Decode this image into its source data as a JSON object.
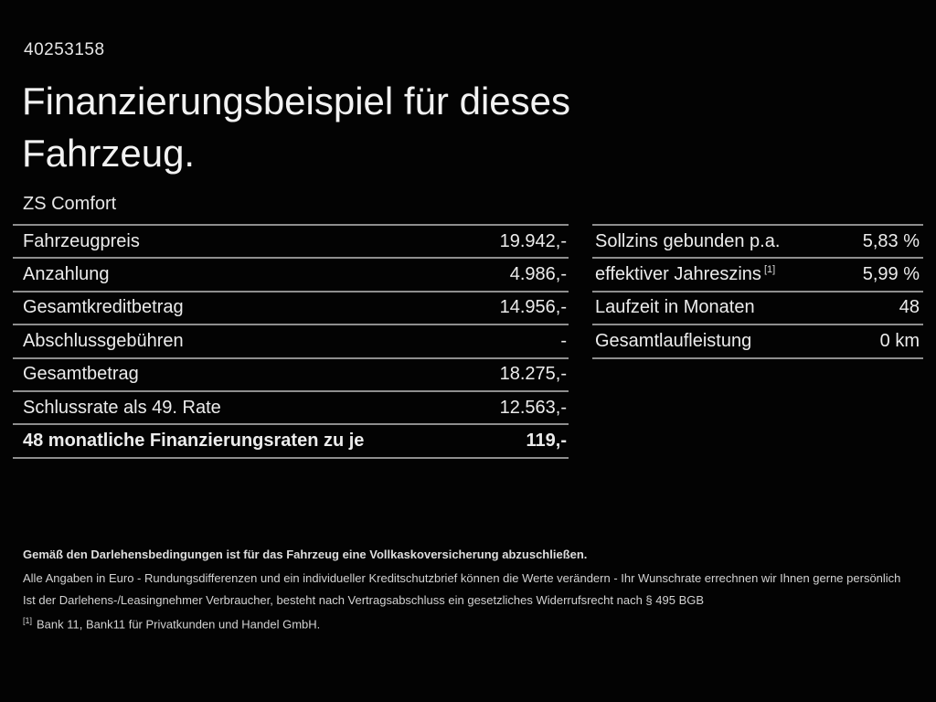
{
  "page": {
    "background": "#030303",
    "text_color": "#ececec",
    "divider_color": "#8e8e8e"
  },
  "header": {
    "reference_number": "40253158",
    "title_line1": "Finanzierungsbeispiel für dieses",
    "title_line2": "Fahrzeug.",
    "subtitle": "ZS Comfort"
  },
  "finance_table": {
    "rows": [
      {
        "label": "Fahrzeugpreis",
        "value": "19.942,-"
      },
      {
        "label": "Anzahlung",
        "value": "4.986,-"
      },
      {
        "label": "Gesamtkreditbetrag",
        "value": "14.956,-"
      },
      {
        "label": "Abschlussgebühren",
        "value": "-"
      },
      {
        "label": "Gesamtbetrag",
        "value": "18.275,-"
      },
      {
        "label": "Schlussrate als 49. Rate",
        "value": "12.563,-"
      },
      {
        "label": "48 monatliche Finanzierungsraten zu je",
        "value": "119,-"
      }
    ]
  },
  "terms_table": {
    "rows": [
      {
        "label": "Sollzins gebunden p.a.",
        "sup": "",
        "value": "5,83 %"
      },
      {
        "label": "effektiver Jahreszins",
        "sup": "[1]",
        "value": "5,99 %"
      },
      {
        "label": "Laufzeit in Monaten",
        "sup": "",
        "value": "48"
      },
      {
        "label": "Gesamtlaufleistung",
        "sup": "",
        "value": "0 km"
      }
    ]
  },
  "footer": {
    "insurance_note": "Gemäß den Darlehensbedingungen ist für das Fahrzeug eine Vollkaskoversicherung abzuschließen.",
    "disclaimer_line1": "Alle Angaben in Euro - Rundungsdifferenzen und ein individueller Kreditschutzbrief können die Werte verändern - Ihr Wunschrate errechnen wir Ihnen gerne persönlich",
    "disclaimer_line2": "Ist der Darlehens-/Leasingnehmer Verbraucher, besteht nach Vertragsabschluss ein gesetzliches Widerrufsrecht nach § 495 BGB",
    "footnote_marker": "[1]",
    "footnote_text": "Bank 11, Bank11 für Privatkunden und Handel GmbH."
  }
}
